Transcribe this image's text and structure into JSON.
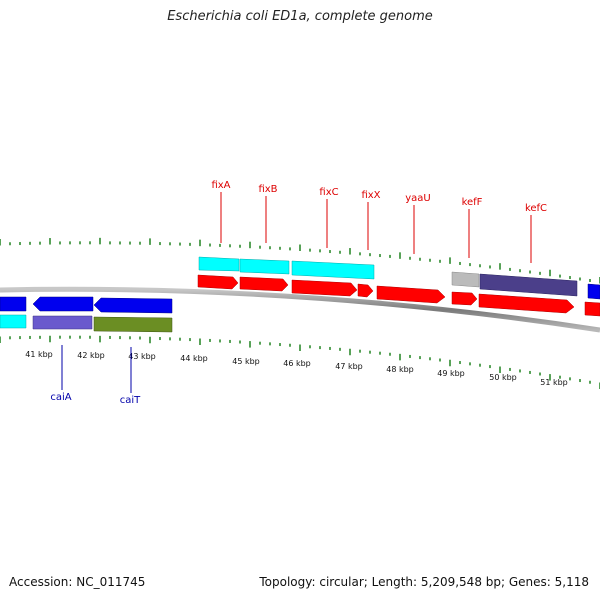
{
  "title": "Escherichia coli ED1a, complete genome",
  "footer": {
    "accession": "Accession: NC_011745",
    "summary": "Topology: circular; Length: 5,209,548 bp; Genes: 5,118"
  },
  "colors": {
    "forward_label": "#dd0000",
    "reverse_label": "#0000aa",
    "tick": "#2e8b2e",
    "backbone": "#8a8a8a"
  },
  "kbp_labels": [
    "41 kbp",
    "42 kbp",
    "43 kbp",
    "44 kbp",
    "45 kbp",
    "46 kbp",
    "47 kbp",
    "48 kbp",
    "49 kbp",
    "50 kbp",
    "51 kbp"
  ],
  "forward_gene_labels": [
    "fixA",
    "fixB",
    "fixC",
    "fixX",
    "yaaU",
    "kefF",
    "kefC"
  ],
  "reverse_gene_labels": [
    "caiA",
    "caiT"
  ]
}
